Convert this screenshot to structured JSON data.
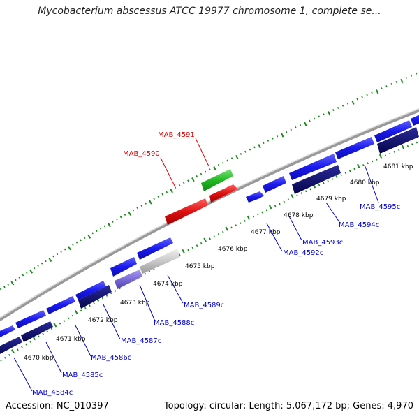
{
  "title": "Mycobacterium abscessus ATCC 19977 chromosome 1, complete se...",
  "footer": {
    "accession": "Accession: NC_010397",
    "summary": "Topology: circular; Length: 5,067,172 bp; Genes: 4,970"
  },
  "colors": {
    "forward_gene": "#1a1aee",
    "reverse_gene": "#0a0a6e",
    "highlight_red": "#e01010",
    "highlight_green": "#22bb22",
    "grey_gene": "#c8c8c8",
    "purple_gene": "#7a6ad8",
    "backbone": "#888888",
    "tick_green": "#1a8a1a",
    "label_blue": "#0000cc",
    "label_red": "#dd0000"
  },
  "kbp_ticks": [
    "4670 kbp",
    "4671 kbp",
    "4672 kbp",
    "4673 kbp",
    "4674 kbp",
    "4675 kbp",
    "4676 kbp",
    "4677 kbp",
    "4678 kbp",
    "4679 kbp",
    "4680 kbp",
    "4681 kbp"
  ],
  "gene_labels": [
    {
      "text": "MAB_4591",
      "color": "red"
    },
    {
      "text": "MAB_4590",
      "color": "red"
    },
    {
      "text": "MAB_4595c",
      "color": "blue"
    },
    {
      "text": "MAB_4594c",
      "color": "blue"
    },
    {
      "text": "MAB_4593c",
      "color": "blue"
    },
    {
      "text": "MAB_4592c",
      "color": "blue"
    },
    {
      "text": "MAB_4589c",
      "color": "blue"
    },
    {
      "text": "MAB_4588c",
      "color": "blue"
    },
    {
      "text": "MAB_4587c",
      "color": "blue"
    },
    {
      "text": "MAB_4586c",
      "color": "blue"
    },
    {
      "text": "MAB_4585c",
      "color": "blue"
    },
    {
      "text": "MAB_4584c",
      "color": "blue"
    }
  ]
}
